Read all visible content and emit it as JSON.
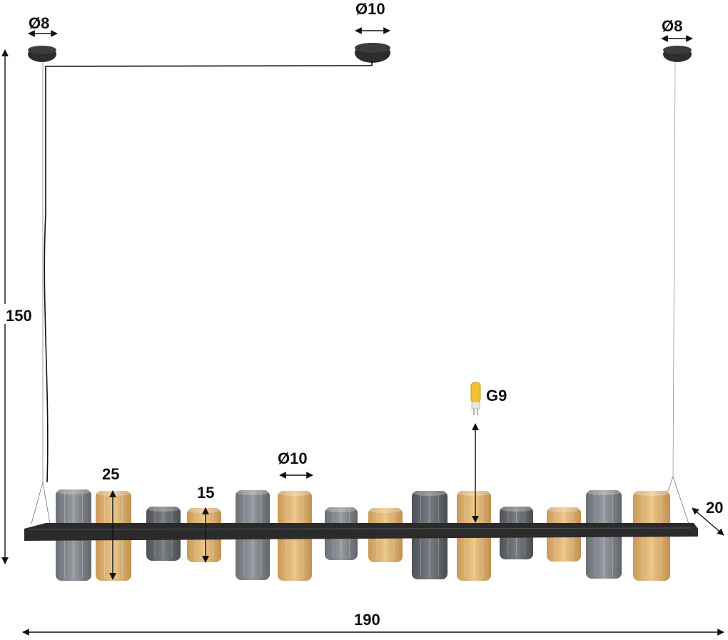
{
  "dimensions": {
    "canopy_left_diameter": "Ø8",
    "canopy_center_diameter": "Ø10",
    "canopy_right_diameter": "Ø8",
    "total_height": "150",
    "total_width": "190",
    "depth": "20",
    "tall_shade_height": "25",
    "short_shade_height": "15",
    "shade_diameter": "Ø10",
    "bulb_type": "G9"
  },
  "colors": {
    "smoke_glass": "#6b7077",
    "amber_glass": "#d9a75e",
    "frame": "#2b2b2b",
    "dimension_line": "#111111",
    "bulb": "#f2c230"
  }
}
